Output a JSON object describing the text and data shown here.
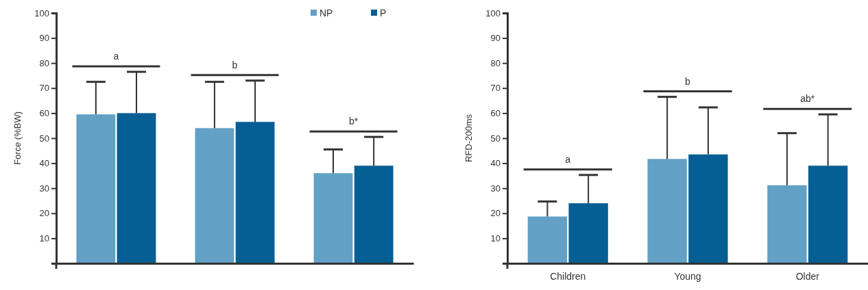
{
  "chart_data": [
    {
      "type": "bar",
      "ylabel": "Force (%BW)",
      "categories": [
        null,
        null,
        null
      ],
      "series": [
        {
          "name": "NP",
          "color": "#62a0c6",
          "values": [
            59.5,
            54,
            36
          ],
          "errors": [
            [
              59.5,
              72.5
            ],
            [
              54,
              72.5
            ],
            [
              36,
              45.5
            ]
          ]
        },
        {
          "name": "P",
          "color": "#055e94",
          "values": [
            60,
            56.5,
            39
          ],
          "errors": [
            [
              60,
              76.5
            ],
            [
              56.5,
              73
            ],
            [
              39,
              50.5
            ]
          ]
        }
      ],
      "ylim": [
        0,
        100
      ],
      "yticks": [
        {
          "value": 0,
          "label": null
        },
        10,
        20,
        30,
        40,
        50,
        60,
        70,
        80,
        90,
        100
      ],
      "annotations": [
        "a",
        "b",
        "b*"
      ],
      "legend": "top right",
      "grid": false
    },
    {
      "type": "bar",
      "ylabel": "RFD-200ms",
      "categories": [
        "Children",
        "Young",
        "Older"
      ],
      "series": [
        {
          "color": "#62a0c6",
          "values": [
            18.7,
            41.7,
            31.2
          ],
          "errors": [
            [
              18.7,
              24.7
            ],
            [
              41.7,
              66.5
            ],
            [
              31.2,
              52
            ]
          ]
        },
        {
          "color": "#055e94",
          "values": [
            24,
            43.5,
            39
          ],
          "errors": [
            [
              24,
              35.3
            ],
            [
              43.5,
              62.3
            ],
            [
              39,
              59.5
            ]
          ]
        }
      ],
      "ylim": [
        0,
        100
      ],
      "yticks": [
        {
          "value": 0,
          "label": null
        },
        10,
        20,
        30,
        40,
        50,
        60,
        70,
        80,
        90,
        100
      ],
      "annotations": [
        "a",
        "b",
        "ab*"
      ],
      "legend": false,
      "grid": false
    }
  ]
}
